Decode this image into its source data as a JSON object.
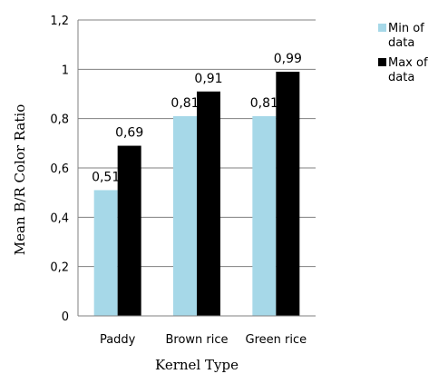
{
  "chart_data": {
    "type": "bar",
    "categories": [
      "Paddy",
      "Brown rice",
      "Green rice"
    ],
    "series": [
      {
        "name": "Min of data",
        "values": [
          0.51,
          0.81,
          0.81
        ],
        "labels": [
          "0,51",
          "0,81",
          "0,81"
        ],
        "color": "#a6d8e8"
      },
      {
        "name": "Max of data",
        "values": [
          0.69,
          0.91,
          0.99
        ],
        "labels": [
          "0,69",
          "0,91",
          "0,99"
        ],
        "color": "#000000"
      }
    ],
    "xlabel": "Kernel Type",
    "ylabel": "Mean B/R Color Ratio",
    "ylim": [
      0,
      1.2
    ],
    "yticks": [
      0,
      0.2,
      0.4,
      0.6,
      0.8,
      1.0,
      1.2
    ],
    "ytick_labels": [
      "0",
      "0,2",
      "0,4",
      "0,6",
      "0,8",
      "1",
      "1,2"
    ],
    "grid": true,
    "legend": {
      "placement": "top-right",
      "entries": [
        {
          "lines": [
            "Min of",
            "data"
          ]
        },
        {
          "lines": [
            "Max of",
            "data"
          ]
        }
      ]
    }
  }
}
